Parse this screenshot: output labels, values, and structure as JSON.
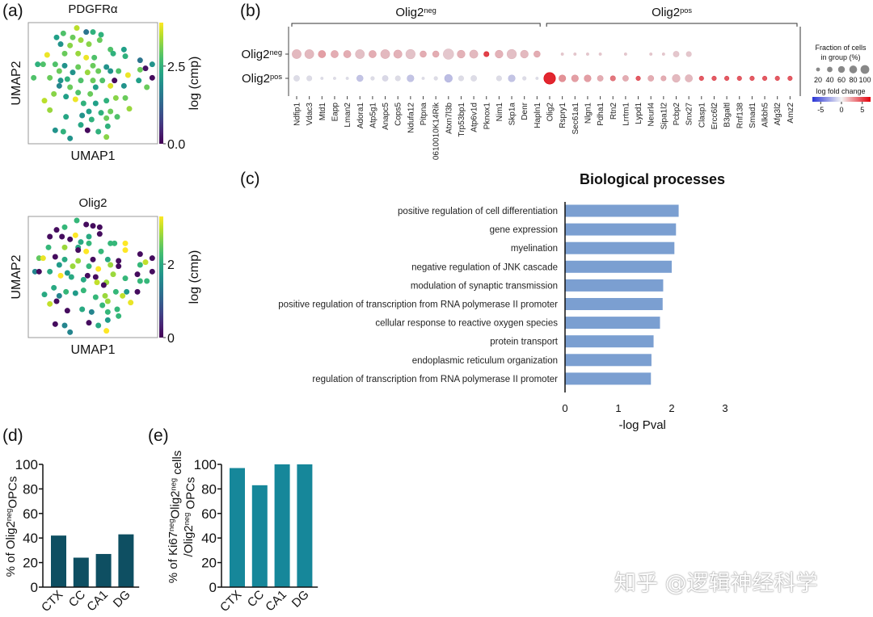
{
  "panel_labels": {
    "a": "(a)",
    "b": "(b)",
    "c": "(c)",
    "d": "(d)",
    "e": "(e)"
  },
  "watermark": "知乎 @逻辑神经科学",
  "chart_data": [
    {
      "id": "a1",
      "type": "scatter",
      "title": "PDGFRα",
      "xlabel": "UMAP1",
      "ylabel": "UMAP2",
      "colorbar_label": "log (cmp)",
      "colorbar_ticks": [
        "0.0",
        "2.5"
      ],
      "colorbar_tick_values": [
        0,
        2.5
      ],
      "color_range": [
        0,
        3.9
      ],
      "colormap": "viridis",
      "xlim": [
        0.5,
        48.5
      ],
      "ylim": [
        0.5,
        45.5
      ],
      "points": [
        [
          18.5,
          43.5,
          3.5
        ],
        [
          22,
          42,
          1.5
        ],
        [
          24.5,
          42,
          2.5
        ],
        [
          27.5,
          41,
          2.5
        ],
        [
          13.5,
          41.5,
          2.8
        ],
        [
          11,
          40,
          2.2
        ],
        [
          17,
          40,
          3.0
        ],
        [
          20,
          39,
          3.3
        ],
        [
          12.5,
          37.5,
          2.0
        ],
        [
          16,
          37,
          3.2
        ],
        [
          23,
          37.5,
          3.2
        ],
        [
          27,
          39,
          3.0
        ],
        [
          7.5,
          33.5,
          3.8
        ],
        [
          14,
          34,
          3.0
        ],
        [
          19,
          34,
          3.3
        ],
        [
          22,
          32.5,
          3.8
        ],
        [
          25,
          32.5,
          2.8
        ],
        [
          31,
          35.5,
          2.8
        ],
        [
          36,
          35.5,
          2.2
        ],
        [
          32,
          34,
          2.5
        ],
        [
          36.5,
          33,
          2.5
        ],
        [
          4,
          30,
          2.5
        ],
        [
          6,
          30,
          2.8
        ],
        [
          10.5,
          30,
          2.8
        ],
        [
          14,
          29.5,
          2.0
        ],
        [
          19,
          29,
          3.0
        ],
        [
          24.5,
          29.5,
          3.0
        ],
        [
          29.5,
          29,
          2.0
        ],
        [
          34,
          27.5,
          2.8
        ],
        [
          42,
          31.5,
          1.5
        ],
        [
          44,
          28.5,
          0.2
        ],
        [
          46.5,
          30,
          2.0
        ],
        [
          46.5,
          25,
          0.1
        ],
        [
          2.5,
          25,
          2.8
        ],
        [
          8.5,
          25,
          3.0
        ],
        [
          12,
          27.5,
          3.0
        ],
        [
          17,
          27,
          2.0
        ],
        [
          22.5,
          27,
          3.3
        ],
        [
          26.5,
          27.5,
          3.0
        ],
        [
          31,
          27.5,
          2.0
        ],
        [
          37.5,
          26,
          3.8
        ],
        [
          42,
          28,
          3.0
        ],
        [
          12.5,
          24,
          2.0
        ],
        [
          15,
          24.5,
          2.5
        ],
        [
          20,
          24,
          2.8
        ],
        [
          24.5,
          24,
          3.0
        ],
        [
          28,
          24,
          2.8
        ],
        [
          32.5,
          24,
          0.1
        ],
        [
          31,
          22,
          3.7
        ],
        [
          25.5,
          21.5,
          2.2
        ],
        [
          36,
          22,
          2.0
        ],
        [
          41.5,
          24,
          2.2
        ],
        [
          44.5,
          21.5,
          3.0
        ],
        [
          12,
          22,
          1.8
        ],
        [
          16,
          21.5,
          3.0
        ],
        [
          19,
          19.5,
          2.8
        ],
        [
          23.5,
          19,
          3.0
        ],
        [
          10,
          19,
          3.2
        ],
        [
          6.5,
          16.5,
          3.5
        ],
        [
          14.5,
          18,
          2.2
        ],
        [
          18,
          17,
          3.8
        ],
        [
          21,
          15.5,
          2.5
        ],
        [
          25.5,
          15.5,
          2.2
        ],
        [
          29.5,
          16.5,
          2.5
        ],
        [
          33,
          17.5,
          3.2
        ],
        [
          36.5,
          17.5,
          3.0
        ],
        [
          8.5,
          13,
          3.3
        ],
        [
          14.5,
          10.5,
          2.3
        ],
        [
          20.5,
          11,
          2.0
        ],
        [
          23,
          12.5,
          2.2
        ],
        [
          24,
          9.5,
          2.5
        ],
        [
          27.5,
          12,
          2.5
        ],
        [
          29.5,
          10,
          3.0
        ],
        [
          33.5,
          10.5,
          2.8
        ],
        [
          38,
          13.5,
          3.3
        ],
        [
          31,
          12.5,
          3.0
        ],
        [
          10.5,
          5.5,
          2.0
        ],
        [
          13.5,
          5,
          2.5
        ],
        [
          16,
          2.5,
          2.0
        ],
        [
          22.5,
          5.5,
          0.1
        ],
        [
          26.5,
          5,
          2.5
        ],
        [
          29.5,
          3,
          3.2
        ],
        [
          30,
          7,
          2.5
        ],
        [
          20,
          7.5,
          2.3
        ]
      ]
    },
    {
      "id": "a2",
      "type": "scatter",
      "title": "Olig2",
      "xlabel": "UMAP1",
      "ylabel": "UMAP2",
      "colorbar_label": "log (cmp)",
      "colorbar_ticks": [
        "0",
        "2"
      ],
      "colorbar_tick_values": [
        0,
        2
      ],
      "color_range": [
        0,
        3.3
      ],
      "colormap": "viridis",
      "xlim": [
        0.5,
        48.5
      ],
      "ylim": [
        0.5,
        45.5
      ],
      "points": [
        [
          18.5,
          44,
          2.2
        ],
        [
          22,
          42.5,
          0.1
        ],
        [
          24.5,
          42,
          0.1
        ],
        [
          27,
          41.5,
          0.1
        ],
        [
          27,
          39,
          0.1
        ],
        [
          14,
          41.5,
          2.2
        ],
        [
          11,
          40.5,
          0.1
        ],
        [
          13,
          38,
          0.1
        ],
        [
          8.5,
          38,
          0.1
        ],
        [
          16,
          37,
          0.1
        ],
        [
          18,
          38.5,
          3.3
        ],
        [
          23,
          38,
          2.0
        ],
        [
          20,
          36,
          2.0
        ],
        [
          23,
          35.5,
          2.2
        ],
        [
          31,
          35.5,
          2.2
        ],
        [
          32.5,
          35.5,
          2.2
        ],
        [
          36.5,
          35.5,
          3.3
        ],
        [
          36.5,
          33,
          3.3
        ],
        [
          8,
          34,
          2.2
        ],
        [
          14,
          34,
          2.8
        ],
        [
          19,
          34,
          2.0
        ],
        [
          19,
          33,
          0.1
        ],
        [
          22,
          32.5,
          3.3
        ],
        [
          27.5,
          32.5,
          2.2
        ],
        [
          4.5,
          30,
          2.5
        ],
        [
          6,
          30,
          3.2
        ],
        [
          10.5,
          30.5,
          0.1
        ],
        [
          14,
          29.5,
          2.0
        ],
        [
          19,
          29,
          2.8
        ],
        [
          24.5,
          29.5,
          0.1
        ],
        [
          30,
          29.5,
          2.0
        ],
        [
          34,
          29,
          0.1
        ],
        [
          42,
          31.5,
          0.1
        ],
        [
          46.5,
          30,
          0.1
        ],
        [
          44,
          28.5,
          3.0
        ],
        [
          42,
          27.5,
          2.2
        ],
        [
          3,
          25,
          1.5
        ],
        [
          4.5,
          25,
          0.1
        ],
        [
          8.5,
          25,
          2.0
        ],
        [
          12,
          27.5,
          1.8
        ],
        [
          17,
          27,
          2.8
        ],
        [
          23,
          27,
          2.2
        ],
        [
          26.5,
          26,
          3.3
        ],
        [
          31,
          27.5,
          2.8
        ],
        [
          34,
          27,
          0.1
        ],
        [
          41,
          24,
          0.1
        ],
        [
          46.5,
          25,
          0.1
        ],
        [
          12.5,
          23.5,
          3.3
        ],
        [
          15,
          24.5,
          1.8
        ],
        [
          16.5,
          23,
          2.0
        ],
        [
          21,
          22,
          2.0
        ],
        [
          22.5,
          23.5,
          0.1
        ],
        [
          25.5,
          23,
          0.1
        ],
        [
          26,
          21,
          3.0
        ],
        [
          29.5,
          21,
          2.8
        ],
        [
          28.5,
          20,
          0.1
        ],
        [
          32,
          24,
          2.8
        ],
        [
          36.5,
          22.5,
          2.2
        ],
        [
          42,
          21.5,
          2.2
        ],
        [
          44.5,
          21.5,
          2.2
        ],
        [
          10,
          19,
          2.0
        ],
        [
          6.5,
          16.5,
          2.0
        ],
        [
          12,
          16,
          1.5
        ],
        [
          14.5,
          17.5,
          2.2
        ],
        [
          18,
          17,
          1.8
        ],
        [
          21,
          18,
          2.2
        ],
        [
          25.5,
          15.5,
          2.2
        ],
        [
          29,
          16,
          2.8
        ],
        [
          30,
          14,
          2.8
        ],
        [
          33,
          17.5,
          2.2
        ],
        [
          35.5,
          16,
          3.0
        ],
        [
          37,
          17.5,
          1.8
        ],
        [
          38.5,
          13.5,
          3.2
        ],
        [
          41,
          17.5,
          0.1
        ],
        [
          8.5,
          13,
          3.0
        ],
        [
          11,
          14,
          0.1
        ],
        [
          15,
          10.5,
          0.1
        ],
        [
          20.5,
          11,
          2.0
        ],
        [
          24,
          10,
          1.5
        ],
        [
          28,
          12.5,
          2.2
        ],
        [
          30,
          10,
          2.2
        ],
        [
          33.5,
          11,
          2.2
        ],
        [
          34,
          8.5,
          2.2
        ],
        [
          23,
          6,
          0.1
        ],
        [
          26.5,
          5,
          2.0
        ],
        [
          30,
          7,
          1.8
        ],
        [
          10.5,
          5.5,
          0.1
        ],
        [
          14,
          5,
          1.5
        ],
        [
          16,
          2.5,
          1.5
        ],
        [
          29.5,
          3,
          3.3
        ]
      ]
    },
    {
      "id": "b",
      "type": "dotplot",
      "groups": [
        {
          "name": "Olig2",
          "sup": "neg"
        },
        {
          "name": "Olig2",
          "sup": "pos"
        }
      ],
      "genes_neg": [
        "Ndfip1",
        "Vdac3",
        "Mtd1",
        "Eapp",
        "Lman2",
        "Adora1",
        "Atp5g1",
        "Anapc5",
        "Cops5",
        "Ndufa12",
        "Pitpna",
        "0610010K14Rik",
        "Atxn7l3b",
        "Trp53bp1",
        "Atp6v1d",
        "Pknox1",
        "Nim1",
        "Skp1a",
        "Denr",
        "Hapln1"
      ],
      "genes_pos": [
        "Olig2",
        "Rspry1",
        "Sec61a1",
        "Nlgn1",
        "Pdha1",
        "Rtn2",
        "Lrrtm1",
        "Lypd1",
        "Neurl4",
        "Sipa1l2",
        "Pcbp2",
        "Snx27",
        "Clasp1",
        "Ercc6l2",
        "B3galtl",
        "Rnf138",
        "Smad1",
        "Alkbh5",
        "Afg3l2",
        "Amz2"
      ],
      "fraction_neg_row": [
        60,
        60,
        40,
        40,
        40,
        60,
        40,
        60,
        50,
        65,
        30,
        30,
        80,
        45,
        50,
        20,
        45,
        65,
        45,
        30,
        0,
        5,
        5,
        5,
        5,
        0,
        5,
        0,
        5,
        5,
        25,
        20,
        0,
        0,
        0,
        0,
        0,
        0,
        0,
        0
      ],
      "logfc_neg_row": [
        1.5,
        1.5,
        2.5,
        2,
        2,
        1.3,
        2,
        1.5,
        1.8,
        1.2,
        2,
        2,
        1,
        1.8,
        1.5,
        6,
        1.8,
        1.3,
        1.5,
        2,
        0,
        1,
        1,
        1,
        1,
        0,
        1,
        0,
        1,
        1,
        1,
        1,
        0,
        0,
        0,
        0,
        0,
        0,
        0,
        0
      ],
      "fraction_pos_row": [
        25,
        20,
        5,
        5,
        5,
        30,
        10,
        25,
        20,
        35,
        5,
        10,
        45,
        20,
        25,
        0,
        20,
        35,
        10,
        5,
        100,
        35,
        35,
        35,
        25,
        20,
        25,
        15,
        25,
        20,
        45,
        40,
        15,
        15,
        15,
        15,
        15,
        15,
        15,
        15
      ],
      "logfc_pos_row": [
        -0.3,
        -0.3,
        -0.3,
        -0.3,
        -0.3,
        -1.5,
        -0.3,
        -0.5,
        -0.3,
        -1.5,
        -0.3,
        -0.3,
        -1.8,
        -0.3,
        -0.3,
        0,
        -0.3,
        -1.5,
        -0.3,
        -0.3,
        7,
        3,
        2.5,
        2.5,
        2,
        4,
        2,
        5,
        2,
        2,
        1.5,
        1.5,
        5,
        5,
        5,
        5,
        5,
        5,
        5,
        5
      ],
      "legend": {
        "size_title_1": "Fraction of cells",
        "size_title_2": "in group (%)",
        "size_values": [
          "20",
          "40",
          "60",
          "80",
          "100"
        ],
        "color_title": "log fold change",
        "color_ticks": [
          "-5",
          "0",
          "5"
        ],
        "color_range": [
          -7,
          7
        ]
      },
      "colors": {
        "negative": "#2a35d6",
        "zero": "#e6e4ea",
        "positive": "#e3000b"
      }
    },
    {
      "id": "c",
      "type": "bar",
      "orientation": "horizontal",
      "title": "Biological processes",
      "xlabel": "-log Pval",
      "xlim": [
        0,
        3
      ],
      "xticks": [
        "0",
        "1",
        "2",
        "3"
      ],
      "categories": [
        "positive regulation of cell differentiation",
        "gene expression",
        "myelination",
        "negative regulation of JNK cascade",
        "modulation of synaptic transmission",
        "positive regulation of transcription from RNA polymerase II promoter",
        "cellular response to reactive oxygen species",
        "protein transport",
        "endoplasmic reticulum organization",
        "regulation of transcription from RNA polymerase II promoter"
      ],
      "values": [
        2.13,
        2.08,
        2.05,
        2.0,
        1.84,
        1.83,
        1.78,
        1.66,
        1.62,
        1.61
      ],
      "color": "#7b9fd1"
    },
    {
      "id": "d",
      "type": "bar",
      "ylabel_parts": [
        "% of Olig2",
        "neg",
        "OPCs"
      ],
      "categories": [
        "CTX",
        "CC",
        "CA1",
        "DG"
      ],
      "values": [
        42,
        24,
        27,
        43
      ],
      "ylim": [
        0,
        100
      ],
      "yticks": [
        "0",
        "20",
        "40",
        "60",
        "80",
        "100"
      ],
      "color": "#0e4f62"
    },
    {
      "id": "e",
      "type": "bar",
      "ylabel_line1_parts": [
        "% of Ki67",
        "neg",
        "Olig2",
        "neg",
        " cells"
      ],
      "ylabel_line2_parts": [
        "/Olig2",
        "neg",
        " OPCs"
      ],
      "categories": [
        "CTX",
        "CC",
        "CA1",
        "DG"
      ],
      "values": [
        97,
        83,
        100,
        100
      ],
      "ylim": [
        0,
        100
      ],
      "yticks": [
        "0",
        "20",
        "40",
        "60",
        "80",
        "100"
      ],
      "color": "#16879a"
    }
  ]
}
